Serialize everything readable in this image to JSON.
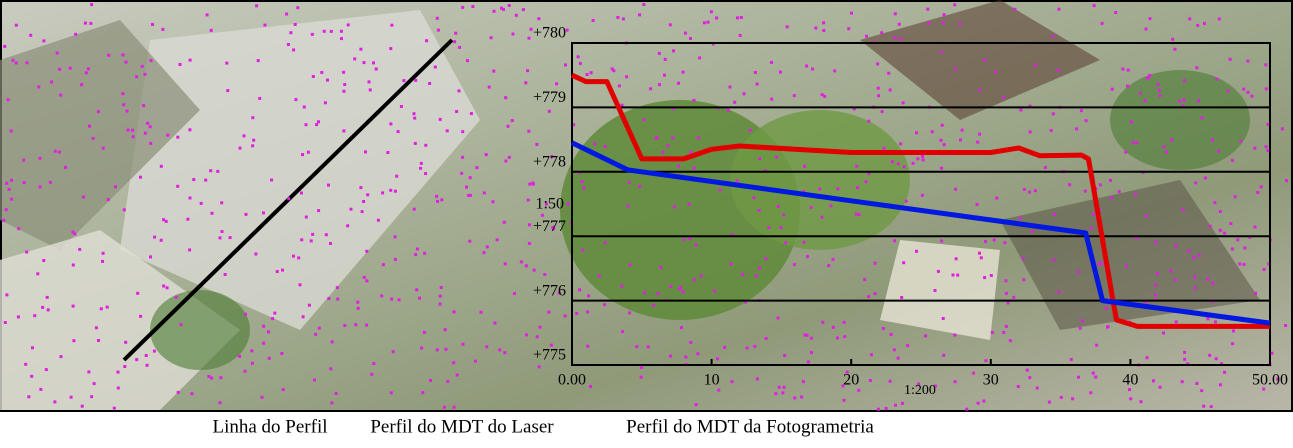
{
  "chart_data": {
    "type": "line",
    "xlim": [
      0,
      50
    ],
    "ylim": [
      775,
      780
    ],
    "xticks": [
      {
        "value": 0,
        "label": "0.00"
      },
      10,
      20,
      30,
      40,
      {
        "value": 50,
        "label": "50.00"
      }
    ],
    "yticks": [
      {
        "value": 775,
        "label": "+775"
      },
      {
        "value": 776,
        "label": "+776"
      },
      {
        "value": 777,
        "label": "+777"
      },
      {
        "value": 778,
        "label": "+778"
      },
      {
        "value": 779,
        "label": "+779"
      },
      {
        "value": 780,
        "label": "+780"
      }
    ],
    "grid": true,
    "x_scale_label": "1:200",
    "y_scale_label": "1:50",
    "series": [
      {
        "name": "Perfil do MDT da Fotogrametria",
        "color": "#e00000",
        "x": [
          0,
          1,
          2.5,
          5,
          8,
          10,
          12,
          20,
          30,
          32,
          33.5,
          36.5,
          37,
          39,
          40.5,
          50
        ],
        "values": [
          779.5,
          779.4,
          779.4,
          778.2,
          778.2,
          778.35,
          778.4,
          778.3,
          778.3,
          778.37,
          778.25,
          778.26,
          778.2,
          775.7,
          775.6,
          775.6
        ]
      },
      {
        "name": "Perfil do MDT do Laser",
        "color": "#0018e0",
        "x": [
          0,
          4,
          20,
          36.8,
          38,
          50
        ],
        "values": [
          778.45,
          778.03,
          777.55,
          777.05,
          776.0,
          775.65
        ]
      }
    ]
  },
  "captions": [
    "Linha do Perfil",
    "Perfil do MDT do Laser",
    "Perfil do MDT da Fotogrametria"
  ]
}
